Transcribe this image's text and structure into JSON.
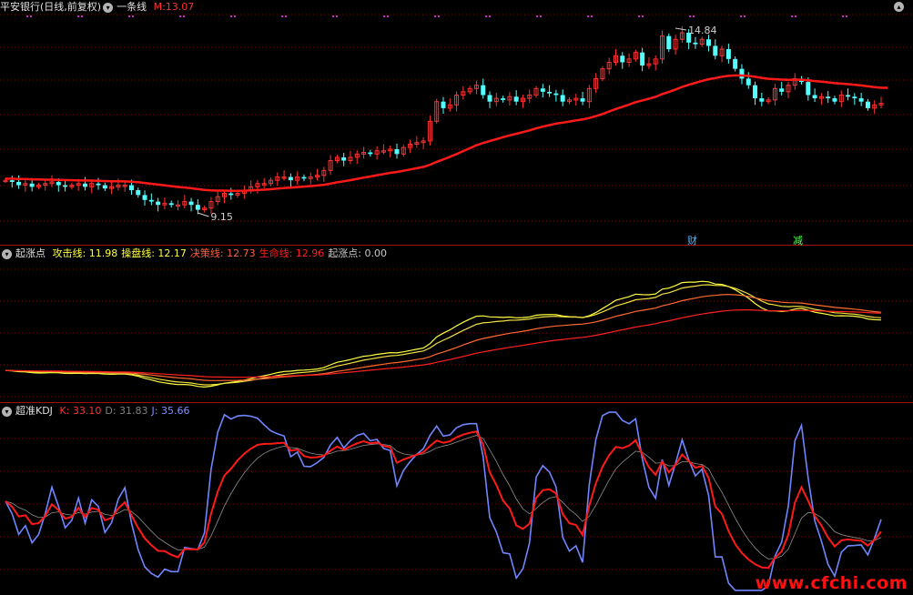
{
  "panel1": {
    "stock_name": "平安银行(日线,前复权)",
    "indicator_name": "一条线",
    "m_label": "M:",
    "m_value": "13.07",
    "high_label": "14.84",
    "low_label": "9.15",
    "tag_cai": "财",
    "tag_jian": "减"
  },
  "panel2": {
    "name": "起涨点",
    "items": [
      {
        "label": "攻击线:",
        "value": "11.98",
        "color": "#ffff40"
      },
      {
        "label": "操盘线:",
        "value": "12.17",
        "color": "#ffff40"
      },
      {
        "label": "决策线:",
        "value": "12.73",
        "color": "#ff6040"
      },
      {
        "label": "生命线:",
        "value": "12.96",
        "color": "#ff2020"
      },
      {
        "label": "起涨点:",
        "value": "0.00",
        "color": "#c8c8c8"
      }
    ]
  },
  "panel3": {
    "name": "超准KDJ",
    "items": [
      {
        "label": "K:",
        "value": "33.10",
        "color": "#ff3030"
      },
      {
        "label": "D:",
        "value": "31.83",
        "color": "#808080"
      },
      {
        "label": "J:",
        "value": "35.66",
        "color": "#8090ff"
      }
    ]
  },
  "watermark": "www.cfchi.com",
  "colors": {
    "up": "#ff3232",
    "down": "#54ffff",
    "ma": "#ff1a1a",
    "k": "#ff1a1a",
    "d": "#909090",
    "j": "#6f86ff"
  },
  "chart_data": {
    "type": "line",
    "close_series": [
      10.2,
      10.15,
      10.05,
      10.1,
      10.0,
      10.05,
      10.1,
      10.15,
      10.05,
      10.0,
      10.05,
      10.1,
      10.0,
      10.1,
      10.05,
      9.95,
      10.0,
      10.05,
      10.05,
      9.9,
      9.75,
      9.6,
      9.55,
      9.45,
      9.5,
      9.45,
      9.45,
      9.55,
      9.45,
      9.3,
      9.35,
      9.55,
      9.7,
      9.8,
      9.75,
      9.8,
      9.9,
      10.0,
      10.1,
      10.1,
      10.2,
      10.3,
      10.3,
      10.2,
      10.3,
      10.25,
      10.3,
      10.35,
      10.5,
      10.8,
      10.9,
      10.8,
      10.9,
      11.0,
      11.05,
      11.0,
      11.1,
      11.1,
      11.15,
      11.0,
      11.2,
      11.3,
      11.35,
      11.4,
      12.0,
      12.6,
      12.4,
      12.5,
      12.8,
      12.9,
      13.0,
      13.1,
      12.8,
      12.6,
      12.7,
      12.65,
      12.75,
      12.6,
      12.7,
      12.8,
      13.0,
      12.9,
      12.85,
      12.8,
      12.6,
      12.65,
      12.7,
      12.6,
      13.0,
      13.3,
      13.6,
      13.8,
      14.0,
      13.8,
      13.9,
      14.1,
      13.7,
      13.75,
      13.9,
      14.6,
      14.2,
      14.5,
      14.7,
      14.4,
      14.35,
      14.5,
      14.3,
      14.0,
      14.2,
      13.9,
      13.6,
      13.3,
      13.1,
      12.7,
      12.6,
      12.65,
      13.0,
      12.9,
      13.1,
      13.3,
      13.2,
      12.8,
      12.7,
      12.75,
      12.7,
      12.6,
      12.8,
      12.75,
      12.7,
      12.6,
      12.4,
      12.5,
      12.55
    ],
    "series": [
      {
        "name": "M",
        "last": 13.07
      },
      {
        "name": "攻击线",
        "last": 11.98
      },
      {
        "name": "操盘线",
        "last": 12.17
      },
      {
        "name": "决策线",
        "last": 12.73
      },
      {
        "name": "生命线",
        "last": 12.96
      },
      {
        "name": "K",
        "last": 33.1
      },
      {
        "name": "D",
        "last": 31.83
      },
      {
        "name": "J",
        "last": 35.66
      }
    ],
    "annotations": [
      {
        "text": "14.84",
        "type": "high"
      },
      {
        "text": "9.15",
        "type": "low"
      }
    ]
  }
}
